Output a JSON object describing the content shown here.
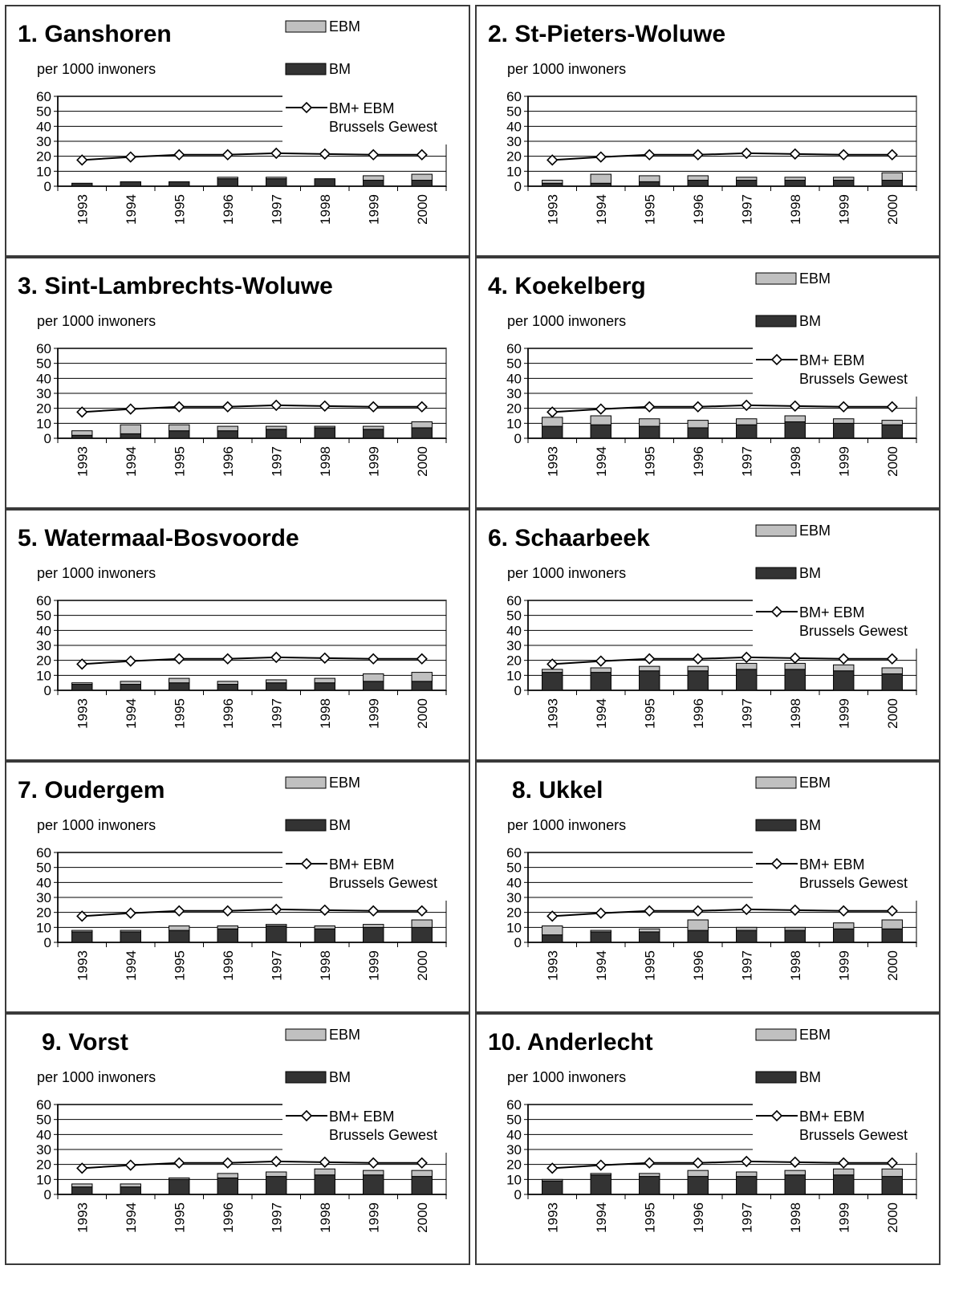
{
  "chart_data": [
    {
      "type": "bar",
      "title": "1. Ganshoren",
      "subtitle": "per 1000 inwoners",
      "show_legend": true,
      "title_indent": false,
      "categories": [
        "1993",
        "1994",
        "1995",
        "1996",
        "1997",
        "1998",
        "1999",
        "2000"
      ],
      "series": [
        {
          "name": "BM",
          "values": [
            2,
            3,
            3,
            5,
            5,
            5,
            4,
            4
          ],
          "color": "#333333"
        },
        {
          "name": "EBM",
          "values": [
            0,
            0,
            0,
            1,
            1,
            0,
            3,
            4
          ],
          "color": "#c0c0c0"
        },
        {
          "name": "BM+ EBM Brussels Gewest",
          "type": "line",
          "values": [
            17.5,
            19.5,
            21,
            21,
            22,
            21.5,
            21,
            21
          ]
        }
      ],
      "ylim": [
        0,
        60
      ],
      "yticks": [
        0,
        10,
        20,
        30,
        40,
        50,
        60
      ]
    },
    {
      "type": "bar",
      "title": "2. St-Pieters-Woluwe",
      "subtitle": "per 1000 inwoners",
      "show_legend": false,
      "title_indent": false,
      "categories": [
        "1993",
        "1994",
        "1995",
        "1996",
        "1997",
        "1998",
        "1999",
        "2000"
      ],
      "series": [
        {
          "name": "BM",
          "values": [
            2,
            2,
            3,
            4,
            4,
            4,
            4,
            4
          ],
          "color": "#333333"
        },
        {
          "name": "EBM",
          "values": [
            2,
            6,
            4,
            3,
            2,
            2,
            2,
            5
          ],
          "color": "#c0c0c0"
        },
        {
          "name": "BM+ EBM Brussels Gewest",
          "type": "line",
          "values": [
            17.5,
            19.5,
            21,
            21,
            22,
            21.5,
            21,
            21
          ]
        }
      ],
      "ylim": [
        0,
        60
      ],
      "yticks": [
        0,
        10,
        20,
        30,
        40,
        50,
        60
      ]
    },
    {
      "type": "bar",
      "title": "3. Sint-Lambrechts-Woluwe",
      "subtitle": "per 1000 inwoners",
      "show_legend": false,
      "title_indent": false,
      "categories": [
        "1993",
        "1994",
        "1995",
        "1996",
        "1997",
        "1998",
        "1999",
        "2000"
      ],
      "series": [
        {
          "name": "BM",
          "values": [
            2,
            3,
            5,
            5,
            6,
            7,
            6,
            7
          ],
          "color": "#333333"
        },
        {
          "name": "EBM",
          "values": [
            3,
            6,
            4,
            3,
            2,
            1,
            2,
            4
          ],
          "color": "#c0c0c0"
        },
        {
          "name": "BM+ EBM Brussels Gewest",
          "type": "line",
          "values": [
            17.5,
            19.5,
            21,
            21,
            22,
            21.5,
            21,
            21
          ]
        }
      ],
      "ylim": [
        0,
        60
      ],
      "yticks": [
        0,
        10,
        20,
        30,
        40,
        50,
        60
      ]
    },
    {
      "type": "bar",
      "title": "4. Koekelberg",
      "subtitle": "per 1000 inwoners",
      "show_legend": true,
      "title_indent": false,
      "categories": [
        "1993",
        "1994",
        "1995",
        "1996",
        "1997",
        "1998",
        "1999",
        "2000"
      ],
      "series": [
        {
          "name": "BM",
          "values": [
            8,
            9,
            8,
            7,
            9,
            11,
            10,
            9
          ],
          "color": "#333333"
        },
        {
          "name": "EBM",
          "values": [
            6,
            6,
            5,
            5,
            4,
            4,
            3,
            3
          ],
          "color": "#c0c0c0"
        },
        {
          "name": "BM+ EBM Brussels Gewest",
          "type": "line",
          "values": [
            17.5,
            19.5,
            21,
            21,
            22,
            21.5,
            21,
            21
          ]
        }
      ],
      "ylim": [
        0,
        60
      ],
      "yticks": [
        0,
        10,
        20,
        30,
        40,
        50,
        60
      ]
    },
    {
      "type": "bar",
      "title": "5. Watermaal-Bosvoorde",
      "subtitle": "per 1000 inwoners",
      "show_legend": false,
      "title_indent": false,
      "categories": [
        "1993",
        "1994",
        "1995",
        "1996",
        "1997",
        "1998",
        "1999",
        "2000"
      ],
      "series": [
        {
          "name": "BM",
          "values": [
            4,
            4,
            5,
            4,
            5,
            5,
            6,
            6
          ],
          "color": "#333333"
        },
        {
          "name": "EBM",
          "values": [
            1,
            2,
            3,
            2,
            2,
            3,
            5,
            6
          ],
          "color": "#c0c0c0"
        },
        {
          "name": "BM+ EBM Brussels Gewest",
          "type": "line",
          "values": [
            17.5,
            19.5,
            21,
            21,
            22,
            21.5,
            21,
            21
          ]
        }
      ],
      "ylim": [
        0,
        60
      ],
      "yticks": [
        0,
        10,
        20,
        30,
        40,
        50,
        60
      ]
    },
    {
      "type": "bar",
      "title": "6. Schaarbeek",
      "subtitle": "per 1000 inwoners",
      "show_legend": true,
      "title_indent": false,
      "categories": [
        "1993",
        "1994",
        "1995",
        "1996",
        "1997",
        "1998",
        "1999",
        "2000"
      ],
      "series": [
        {
          "name": "BM",
          "values": [
            12,
            12,
            13,
            13,
            14,
            14,
            13,
            11
          ],
          "color": "#333333"
        },
        {
          "name": "EBM",
          "values": [
            2,
            3,
            3,
            3,
            4,
            4,
            4,
            4
          ],
          "color": "#c0c0c0"
        },
        {
          "name": "BM+ EBM Brussels Gewest",
          "type": "line",
          "values": [
            17.5,
            19.5,
            21,
            21,
            22,
            21.5,
            21,
            21
          ]
        }
      ],
      "ylim": [
        0,
        60
      ],
      "yticks": [
        0,
        10,
        20,
        30,
        40,
        50,
        60
      ]
    },
    {
      "type": "bar",
      "title": "7. Oudergem",
      "subtitle": "per 1000 inwoners",
      "show_legend": true,
      "title_indent": false,
      "categories": [
        "1993",
        "1994",
        "1995",
        "1996",
        "1997",
        "1998",
        "1999",
        "2000"
      ],
      "series": [
        {
          "name": "BM",
          "values": [
            7,
            7,
            8,
            9,
            11,
            9,
            10,
            10
          ],
          "color": "#333333"
        },
        {
          "name": "EBM",
          "values": [
            1,
            1,
            3,
            2,
            1,
            2,
            2,
            5
          ],
          "color": "#c0c0c0"
        },
        {
          "name": "BM+ EBM Brussels Gewest",
          "type": "line",
          "values": [
            17.5,
            19.5,
            21,
            21,
            22,
            21.5,
            21,
            21
          ]
        }
      ],
      "ylim": [
        0,
        60
      ],
      "yticks": [
        0,
        10,
        20,
        30,
        40,
        50,
        60
      ]
    },
    {
      "type": "bar",
      "title": "8. Ukkel",
      "subtitle": "per 1000 inwoners",
      "show_legend": true,
      "title_indent": true,
      "categories": [
        "1993",
        "1994",
        "1995",
        "1996",
        "1997",
        "1998",
        "1999",
        "2000"
      ],
      "series": [
        {
          "name": "BM",
          "values": [
            5,
            7,
            7,
            8,
            8,
            8,
            9,
            9
          ],
          "color": "#333333"
        },
        {
          "name": "EBM",
          "values": [
            6,
            1,
            2,
            7,
            2,
            2,
            4,
            6
          ],
          "color": "#c0c0c0"
        },
        {
          "name": "BM+ EBM Brussels Gewest",
          "type": "line",
          "values": [
            17.5,
            19.5,
            21,
            21,
            22,
            21.5,
            21,
            21
          ]
        }
      ],
      "ylim": [
        0,
        60
      ],
      "yticks": [
        0,
        10,
        20,
        30,
        40,
        50,
        60
      ]
    },
    {
      "type": "bar",
      "title": "9. Vorst",
      "subtitle": "per 1000 inwoners",
      "show_legend": true,
      "title_indent": true,
      "categories": [
        "1993",
        "1994",
        "1995",
        "1996",
        "1997",
        "1998",
        "1999",
        "2000"
      ],
      "series": [
        {
          "name": "BM",
          "values": [
            5,
            5,
            10,
            11,
            12,
            13,
            13,
            12
          ],
          "color": "#333333"
        },
        {
          "name": "EBM",
          "values": [
            2,
            2,
            1,
            3,
            3,
            4,
            3,
            4
          ],
          "color": "#c0c0c0"
        },
        {
          "name": "BM+ EBM Brussels Gewest",
          "type": "line",
          "values": [
            17.5,
            19.5,
            21,
            21,
            22,
            21.5,
            21,
            21
          ]
        }
      ],
      "ylim": [
        0,
        60
      ],
      "yticks": [
        0,
        10,
        20,
        30,
        40,
        50,
        60
      ]
    },
    {
      "type": "bar",
      "title": "10. Anderlecht",
      "subtitle": "per 1000 inwoners",
      "show_legend": true,
      "title_indent": false,
      "categories": [
        "1993",
        "1994",
        "1995",
        "1996",
        "1997",
        "1998",
        "1999",
        "2000"
      ],
      "series": [
        {
          "name": "BM",
          "values": [
            9,
            13,
            12,
            12,
            12,
            13,
            13,
            12
          ],
          "color": "#333333"
        },
        {
          "name": "EBM",
          "values": [
            1,
            1,
            2,
            4,
            3,
            3,
            4,
            5
          ],
          "color": "#c0c0c0"
        },
        {
          "name": "BM+ EBM Brussels Gewest",
          "type": "line",
          "values": [
            17.5,
            19.5,
            21,
            21,
            22,
            21.5,
            21,
            21
          ]
        }
      ],
      "ylim": [
        0,
        60
      ],
      "yticks": [
        0,
        10,
        20,
        30,
        40,
        50,
        60
      ]
    }
  ],
  "legend": {
    "ebm_label": "EBM",
    "bm_label": "BM",
    "line_label_1": "BM+ EBM",
    "line_label_2": "Brussels Gewest"
  },
  "colors": {
    "bm": "#333333",
    "ebm": "#c0c0c0",
    "axis": "#808080",
    "line": "#000000"
  }
}
